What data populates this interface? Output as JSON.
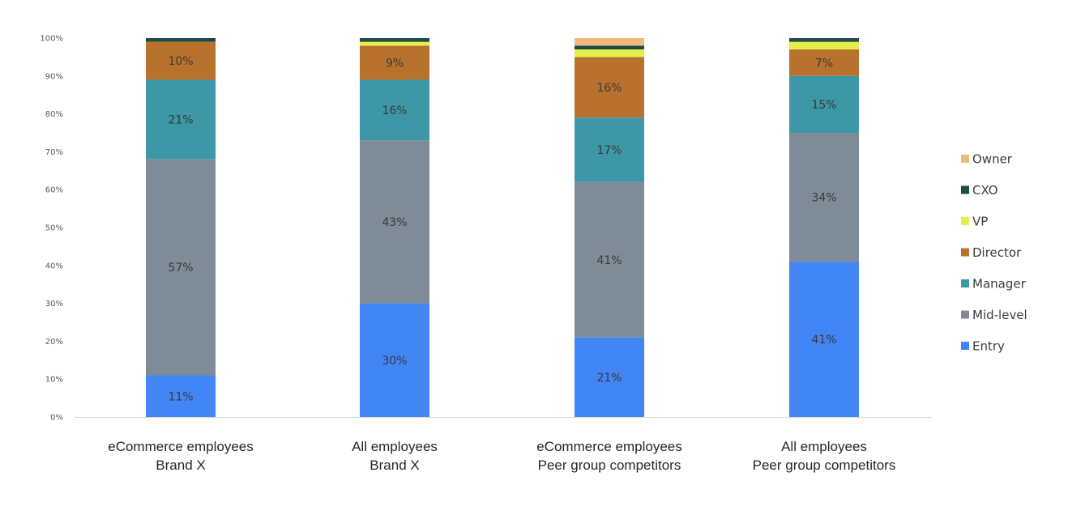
{
  "chart_data": {
    "type": "bar",
    "stacked": true,
    "title": "",
    "xlabel": "",
    "ylabel": "",
    "ylim": [
      0,
      100
    ],
    "y_ticks": [
      "0%",
      "10%",
      "20%",
      "30%",
      "40%",
      "50%",
      "60%",
      "70%",
      "80%",
      "90%",
      "100%"
    ],
    "categories": [
      [
        "eCommerce employees",
        "Brand X"
      ],
      [
        "All employees",
        "Brand X"
      ],
      [
        "eCommerce employees",
        "Peer group competitors"
      ],
      [
        "All employees",
        "Peer group competitors"
      ]
    ],
    "series": [
      {
        "name": "Entry",
        "color": "#4285f4",
        "values": [
          11,
          30,
          21,
          41
        ],
        "labels": [
          "11%",
          "30%",
          "21%",
          "41%"
        ]
      },
      {
        "name": "Mid-level",
        "color": "#7f8c98",
        "values": [
          57,
          43,
          41,
          34
        ],
        "labels": [
          "57%",
          "43%",
          "41%",
          "34%"
        ]
      },
      {
        "name": "Manager",
        "color": "#3d97a6",
        "values": [
          21,
          16,
          17,
          15
        ],
        "labels": [
          "21%",
          "16%",
          "17%",
          "15%"
        ]
      },
      {
        "name": "Director",
        "color": "#b8722e",
        "values": [
          10,
          9,
          16,
          7
        ],
        "labels": [
          "10%",
          "9%",
          "16%",
          "7%"
        ]
      },
      {
        "name": "VP",
        "color": "#e6ef4a",
        "values": [
          0,
          1,
          2,
          2
        ],
        "labels": [
          "",
          "",
          "",
          ""
        ]
      },
      {
        "name": "CXO",
        "color": "#1f4b4a",
        "values": [
          1,
          1,
          1,
          1
        ],
        "labels": [
          "",
          "",
          "",
          ""
        ]
      },
      {
        "name": "Owner",
        "color": "#f2b97c",
        "values": [
          0,
          0,
          2,
          0
        ],
        "labels": [
          "",
          "",
          "",
          ""
        ]
      }
    ],
    "legend": {
      "position": "right",
      "order": [
        "Owner",
        "CXO",
        "VP",
        "Director",
        "Manager",
        "Mid-level",
        "Entry"
      ]
    },
    "grid": false
  }
}
